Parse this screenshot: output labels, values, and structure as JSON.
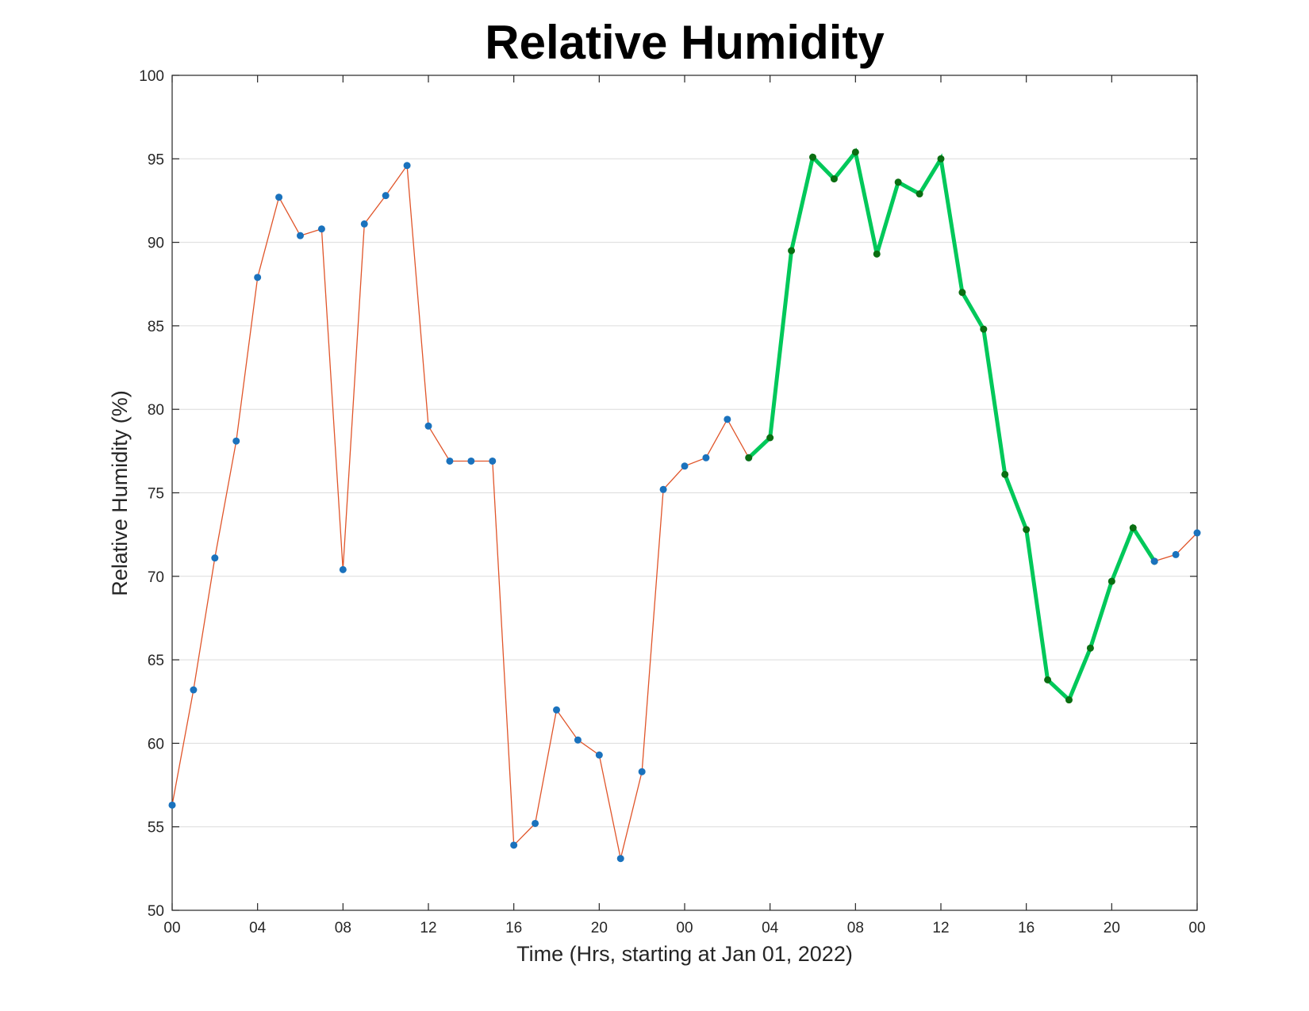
{
  "chart_data": {
    "type": "line",
    "title": "Relative Humidity",
    "xlabel": "Time (Hrs, starting at Jan 01, 2022)",
    "ylabel": "Relative Humidity (%)",
    "xlim": [
      0,
      48
    ],
    "ylim": [
      50,
      100
    ],
    "xticks": [
      0,
      4,
      8,
      12,
      16,
      20,
      24,
      28,
      32,
      36,
      40,
      44,
      48
    ],
    "xtick_labels": [
      "00",
      "04",
      "08",
      "12",
      "16",
      "20",
      "00",
      "04",
      "08",
      "12",
      "16",
      "20",
      "00"
    ],
    "yticks": [
      50,
      55,
      60,
      65,
      70,
      75,
      80,
      85,
      90,
      95,
      100
    ],
    "grid": "horizontal",
    "series": [
      {
        "role": "observed",
        "line_color": "#e0552a",
        "marker_color": "#1a72bd",
        "line_width": "thin",
        "x": [
          0,
          1,
          2,
          3,
          4,
          5,
          6,
          7,
          8,
          9,
          10,
          11,
          12,
          13,
          14,
          15,
          16,
          17,
          18,
          19,
          20,
          21,
          22,
          23,
          24,
          25,
          26,
          27
        ],
        "values": [
          56.3,
          63.2,
          71.1,
          78.1,
          87.9,
          92.7,
          90.4,
          90.8,
          70.4,
          91.1,
          92.8,
          94.6,
          79.0,
          76.9,
          76.9,
          76.9,
          53.9,
          55.2,
          62.0,
          60.2,
          59.3,
          53.1,
          58.3,
          75.2,
          76.6,
          77.1,
          79.4,
          77.1
        ]
      },
      {
        "role": "highlighted",
        "line_color": "#00c85a",
        "marker_color": "#0a6e12",
        "line_width": "thick",
        "x": [
          27,
          28,
          29,
          30,
          31,
          32,
          33,
          34,
          35,
          36,
          37,
          38,
          39,
          40,
          41,
          42,
          43,
          44,
          45,
          46
        ],
        "values": [
          77.1,
          78.3,
          89.5,
          95.1,
          93.8,
          95.4,
          89.3,
          93.6,
          92.9,
          95.0,
          87.0,
          84.8,
          76.1,
          72.8,
          63.8,
          62.6,
          65.7,
          69.7,
          72.9,
          70.9
        ]
      },
      {
        "role": "observed-tail",
        "line_color": "#e0552a",
        "marker_color": "#1a72bd",
        "line_width": "thin",
        "x": [
          46,
          47,
          48
        ],
        "values": [
          70.9,
          71.3,
          72.6
        ]
      }
    ]
  }
}
